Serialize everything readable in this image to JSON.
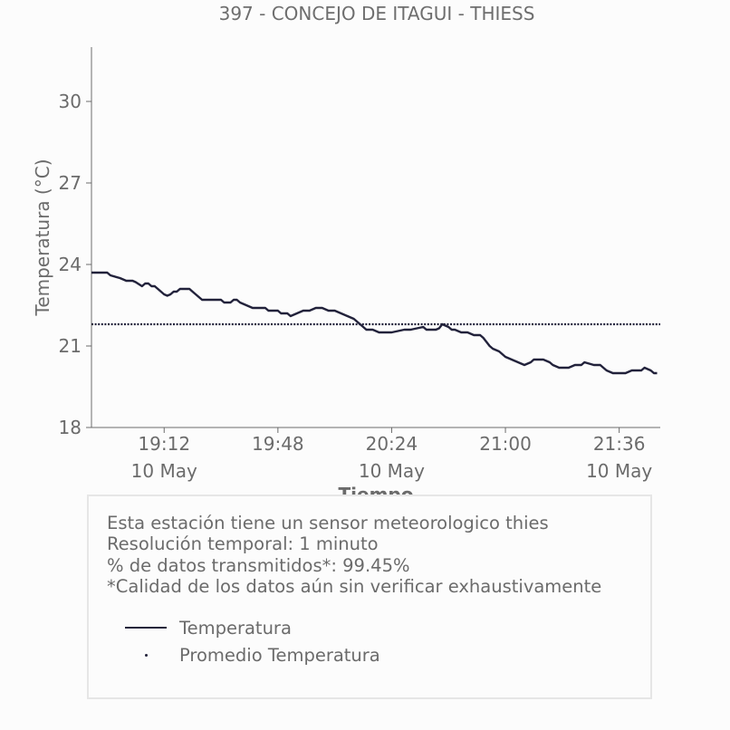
{
  "title": "397 - CONCEJO DE ITAGUI - THIESS",
  "colors": {
    "series": "#22223b",
    "axis": "#6b6b6b",
    "text": "#6b6b6b",
    "background": "#fcfcfc",
    "info_border": "#e6e6e6"
  },
  "info": {
    "lines": [
      "Esta estación tiene un sensor meteorologico thies",
      "Resolución temporal: 1 minuto",
      "% de datos transmitidos*: 99.45%",
      "*Calidad de los datos aún sin verificar exhaustivamente"
    ]
  },
  "legend": {
    "items": [
      "Temperatura",
      "Promedio Temperatura"
    ]
  },
  "chart_data": {
    "type": "line",
    "title": "397 - CONCEJO DE ITAGUI - THIESS",
    "xlabel": "Tiempo",
    "ylabel": "Temperatura (°C)",
    "ylim": [
      18,
      32
    ],
    "xlim": [
      "18:49",
      "21:49"
    ],
    "yticks": [
      18,
      21,
      24,
      27,
      30
    ],
    "xticks": [
      {
        "time": "19:12",
        "label": "19:12",
        "date": "10 May"
      },
      {
        "time": "19:48",
        "label": "19:48",
        "date": ""
      },
      {
        "time": "20:24",
        "label": "20:24",
        "date": "10 May"
      },
      {
        "time": "21:00",
        "label": "21:00",
        "date": ""
      },
      {
        "time": "21:36",
        "label": "21:36",
        "date": "10 May"
      }
    ],
    "grid": false,
    "legend_position": "inside info box, below text",
    "series": [
      {
        "name": "Temperatura",
        "style": "solid",
        "x": [
          "18:49",
          "18:54",
          "18:55",
          "18:58",
          "19:00",
          "19:02",
          "19:03",
          "19:05",
          "19:06",
          "19:07",
          "19:08",
          "19:09",
          "19:10",
          "19:12",
          "19:13",
          "19:14",
          "19:15",
          "19:16",
          "19:17",
          "19:20",
          "19:21",
          "19:22",
          "19:24",
          "19:30",
          "19:31",
          "19:33",
          "19:34",
          "19:35",
          "19:36",
          "19:40",
          "19:41",
          "19:42",
          "19:44",
          "19:45",
          "19:46",
          "19:47",
          "19:48",
          "19:49",
          "19:51",
          "19:52",
          "19:54",
          "19:56",
          "19:58",
          "20:00",
          "20:02",
          "20:04",
          "20:06",
          "20:08",
          "20:10",
          "20:12",
          "20:14",
          "20:16",
          "20:18",
          "20:20",
          "20:22",
          "20:24",
          "20:28",
          "20:30",
          "20:34",
          "20:35",
          "20:37",
          "20:38",
          "20:39",
          "20:40",
          "20:42",
          "20:43",
          "20:44",
          "20:46",
          "20:48",
          "20:50",
          "20:52",
          "20:53",
          "20:55",
          "20:56",
          "20:58",
          "21:00",
          "21:02",
          "21:04",
          "21:06",
          "21:08",
          "21:09",
          "21:10",
          "21:12",
          "21:14",
          "21:15",
          "21:17",
          "21:18",
          "21:20",
          "21:22",
          "21:24",
          "21:25",
          "21:28",
          "21:30",
          "21:31",
          "21:32",
          "21:34",
          "21:35",
          "21:36",
          "21:38",
          "21:40",
          "21:41",
          "21:43",
          "21:44",
          "21:46",
          "21:47",
          "21:48"
        ],
        "y": [
          23.7,
          23.7,
          23.6,
          23.5,
          23.4,
          23.4,
          23.35,
          23.2,
          23.3,
          23.3,
          23.2,
          23.2,
          23.1,
          22.9,
          22.85,
          22.9,
          23.0,
          23.0,
          23.1,
          23.1,
          23.0,
          22.9,
          22.7,
          22.7,
          22.6,
          22.6,
          22.7,
          22.7,
          22.6,
          22.4,
          22.4,
          22.4,
          22.4,
          22.3,
          22.3,
          22.3,
          22.3,
          22.2,
          22.2,
          22.1,
          22.2,
          22.3,
          22.3,
          22.4,
          22.4,
          22.3,
          22.3,
          22.2,
          22.1,
          22.0,
          21.8,
          21.6,
          21.6,
          21.5,
          21.5,
          21.5,
          21.6,
          21.6,
          21.7,
          21.6,
          21.6,
          21.6,
          21.65,
          21.8,
          21.7,
          21.6,
          21.6,
          21.5,
          21.5,
          21.4,
          21.4,
          21.3,
          21.0,
          20.9,
          20.8,
          20.6,
          20.5,
          20.4,
          20.3,
          20.4,
          20.5,
          20.5,
          20.5,
          20.4,
          20.3,
          20.2,
          20.2,
          20.2,
          20.3,
          20.3,
          20.4,
          20.3,
          20.3,
          20.2,
          20.1,
          20.0,
          20.0,
          20.0,
          20.0,
          20.1,
          20.1,
          20.1,
          20.2,
          20.1,
          20.0,
          20.0
        ]
      },
      {
        "name": "Promedio Temperatura",
        "style": "dotted",
        "x": [
          "18:49",
          "21:49"
        ],
        "y": [
          21.8,
          21.8
        ]
      }
    ]
  }
}
